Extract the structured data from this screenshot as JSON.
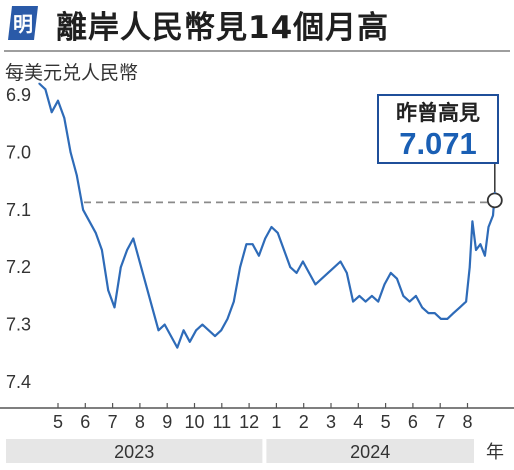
{
  "header": {
    "logo_char": "明",
    "title": "離岸人民幣見14個月高"
  },
  "colors": {
    "series": "#2e6bb8",
    "logo": "#2a5aa8",
    "axis": "#555555",
    "dashed": "#8a8a8a",
    "year_band": "#e6e6e6",
    "callout_border": "#1f4f9a",
    "callout_value": "#1a5fb4"
  },
  "chart_data": {
    "type": "line",
    "title": "離岸人民幣見14個月高",
    "ylabel": "每美元兑人民幣",
    "xlabel": "",
    "y_axis_inverted": true,
    "ylim": [
      6.9,
      7.4
    ],
    "y_ticks": [
      "6.9",
      "7.0",
      "7.1",
      "7.2",
      "7.3",
      "7.4"
    ],
    "x_ticks": [
      "5",
      "6",
      "7",
      "8",
      "9",
      "10",
      "11",
      "12",
      "1",
      "2",
      "3",
      "4",
      "5",
      "6",
      "7",
      "8"
    ],
    "x_unit": "年",
    "years": [
      "2023",
      "2024"
    ],
    "reference_line": 7.087,
    "annotation": {
      "label": "昨曾高見",
      "value": "7.071"
    },
    "series": [
      {
        "points": [
          [
            "2023-04-10",
            6.88
          ],
          [
            "2023-04-17",
            6.89
          ],
          [
            "2023-04-24",
            6.93
          ],
          [
            "2023-05-01",
            6.91
          ],
          [
            "2023-05-08",
            6.94
          ],
          [
            "2023-05-15",
            7.0
          ],
          [
            "2023-05-22",
            7.04
          ],
          [
            "2023-05-29",
            7.1
          ],
          [
            "2023-06-05",
            7.12
          ],
          [
            "2023-06-12",
            7.14
          ],
          [
            "2023-06-19",
            7.17
          ],
          [
            "2023-06-26",
            7.24
          ],
          [
            "2023-07-03",
            7.27
          ],
          [
            "2023-07-10",
            7.2
          ],
          [
            "2023-07-17",
            7.17
          ],
          [
            "2023-07-24",
            7.15
          ],
          [
            "2023-07-31",
            7.19
          ],
          [
            "2023-08-07",
            7.23
          ],
          [
            "2023-08-14",
            7.27
          ],
          [
            "2023-08-21",
            7.31
          ],
          [
            "2023-08-28",
            7.3
          ],
          [
            "2023-09-04",
            7.32
          ],
          [
            "2023-09-11",
            7.34
          ],
          [
            "2023-09-18",
            7.31
          ],
          [
            "2023-09-25",
            7.33
          ],
          [
            "2023-10-02",
            7.31
          ],
          [
            "2023-10-09",
            7.3
          ],
          [
            "2023-10-16",
            7.31
          ],
          [
            "2023-10-23",
            7.32
          ],
          [
            "2023-10-30",
            7.31
          ],
          [
            "2023-11-06",
            7.29
          ],
          [
            "2023-11-13",
            7.26
          ],
          [
            "2023-11-20",
            7.2
          ],
          [
            "2023-11-27",
            7.16
          ],
          [
            "2023-12-04",
            7.16
          ],
          [
            "2023-12-11",
            7.18
          ],
          [
            "2023-12-18",
            7.15
          ],
          [
            "2023-12-25",
            7.13
          ],
          [
            "2024-01-01",
            7.14
          ],
          [
            "2024-01-08",
            7.17
          ],
          [
            "2024-01-15",
            7.2
          ],
          [
            "2024-01-22",
            7.21
          ],
          [
            "2024-01-29",
            7.19
          ],
          [
            "2024-02-05",
            7.21
          ],
          [
            "2024-02-12",
            7.23
          ],
          [
            "2024-02-19",
            7.22
          ],
          [
            "2024-02-26",
            7.21
          ],
          [
            "2024-03-04",
            7.2
          ],
          [
            "2024-03-11",
            7.19
          ],
          [
            "2024-03-18",
            7.21
          ],
          [
            "2024-03-25",
            7.26
          ],
          [
            "2024-04-01",
            7.25
          ],
          [
            "2024-04-08",
            7.26
          ],
          [
            "2024-04-15",
            7.25
          ],
          [
            "2024-04-22",
            7.26
          ],
          [
            "2024-04-29",
            7.23
          ],
          [
            "2024-05-06",
            7.21
          ],
          [
            "2024-05-13",
            7.22
          ],
          [
            "2024-05-20",
            7.25
          ],
          [
            "2024-05-27",
            7.26
          ],
          [
            "2024-06-03",
            7.25
          ],
          [
            "2024-06-10",
            7.27
          ],
          [
            "2024-06-17",
            7.28
          ],
          [
            "2024-06-24",
            7.28
          ],
          [
            "2024-07-01",
            7.29
          ],
          [
            "2024-07-08",
            7.29
          ],
          [
            "2024-07-15",
            7.28
          ],
          [
            "2024-07-22",
            7.27
          ],
          [
            "2024-07-29",
            7.26
          ],
          [
            "2024-08-02",
            7.2
          ],
          [
            "2024-08-05",
            7.12
          ],
          [
            "2024-08-09",
            7.17
          ],
          [
            "2024-08-14",
            7.16
          ],
          [
            "2024-08-19",
            7.18
          ],
          [
            "2024-08-23",
            7.13
          ],
          [
            "2024-08-28",
            7.11
          ],
          [
            "2024-08-30",
            7.07
          ]
        ]
      }
    ]
  }
}
